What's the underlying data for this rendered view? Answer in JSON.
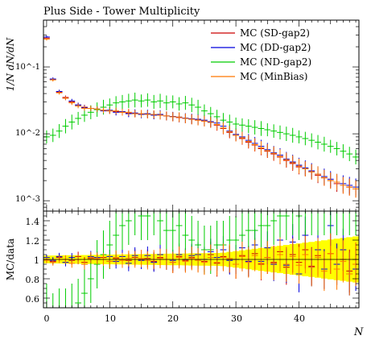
{
  "chart_data": {
    "type": "scatter",
    "title": "Plus Side - Tower Multiplicity",
    "xlabel": "N",
    "ylabel_main": "1/N dN/dN",
    "ylabel_ratio": "MC/data",
    "xlim": [
      -0.5,
      49.5
    ],
    "ylim_main": [
      0.0007,
      0.5
    ],
    "yscale_main": "log",
    "ylim_ratio": [
      0.5,
      1.5
    ],
    "x_ticks": [
      "0",
      "10",
      "20",
      "30",
      "40"
    ],
    "y_ticks_main": [
      "10^-3",
      "10^-2",
      "10^-1"
    ],
    "y_ticks_ratio": [
      "0.6",
      "0.8",
      "1",
      "1.2",
      "1.4"
    ],
    "legend_position": "top-right",
    "series": [
      {
        "name": "MC (SD-gap2)",
        "color": "#cc0000",
        "x": [
          0,
          1,
          2,
          3,
          4,
          5,
          6,
          7,
          8,
          9,
          10,
          11,
          12,
          13,
          14,
          15,
          16,
          17,
          18,
          19,
          20,
          21,
          22,
          23,
          24,
          25,
          26,
          27,
          28,
          29,
          30,
          31,
          32,
          33,
          34,
          35,
          36,
          37,
          38,
          39,
          40,
          41,
          42,
          43,
          44,
          45,
          46,
          47,
          48,
          49
        ],
        "values": [
          0.27,
          0.065,
          0.042,
          0.035,
          0.03,
          0.027,
          0.025,
          0.024,
          0.023,
          0.0225,
          0.022,
          0.0215,
          0.021,
          0.0205,
          0.02,
          0.0198,
          0.0195,
          0.0192,
          0.019,
          0.0185,
          0.018,
          0.0175,
          0.017,
          0.0165,
          0.016,
          0.0155,
          0.015,
          0.0135,
          0.012,
          0.0105,
          0.0095,
          0.0085,
          0.0075,
          0.0068,
          0.006,
          0.0055,
          0.005,
          0.0045,
          0.004,
          0.0036,
          0.0032,
          0.003,
          0.0027,
          0.0024,
          0.0022,
          0.002,
          0.0018,
          0.0017,
          0.0016,
          0.0015
        ],
        "ratio": [
          1.0,
          0.98,
          1.02,
          1.0,
          0.99,
          1.03,
          0.97,
          1.01,
          1.0,
          1.02,
          0.98,
          1.01,
          1.0,
          0.99,
          1.02,
          1.0,
          1.01,
          0.98,
          1.02,
          1.0,
          0.97,
          1.03,
          0.99,
          1.02,
          1.0,
          0.98,
          1.05,
          0.96,
          1.03,
          1.0,
          0.95,
          1.04,
          0.98,
          1.06,
          0.95,
          1.02,
          0.97,
          1.08,
          0.92,
          1.05,
          0.97,
          1.1,
          0.93,
          1.04,
          0.9,
          1.06,
          0.95,
          1.0,
          0.88,
          0.95
        ]
      },
      {
        "name": "MC (DD-gap2)",
        "color": "#0000dd",
        "x": [
          0,
          1,
          2,
          3,
          4,
          5,
          6,
          7,
          8,
          9,
          10,
          11,
          12,
          13,
          14,
          15,
          16,
          17,
          18,
          19,
          20,
          21,
          22,
          23,
          24,
          25,
          26,
          27,
          28,
          29,
          30,
          31,
          32,
          33,
          34,
          35,
          36,
          37,
          38,
          39,
          40,
          41,
          42,
          43,
          44,
          45,
          46,
          47,
          48,
          49
        ],
        "values": [
          0.28,
          0.066,
          0.043,
          0.034,
          0.031,
          0.027,
          0.0245,
          0.024,
          0.0235,
          0.022,
          0.0225,
          0.021,
          0.0215,
          0.02,
          0.0205,
          0.0195,
          0.02,
          0.019,
          0.0195,
          0.0185,
          0.0182,
          0.0178,
          0.0172,
          0.0168,
          0.0165,
          0.016,
          0.0152,
          0.0145,
          0.013,
          0.011,
          0.0098,
          0.009,
          0.008,
          0.0072,
          0.0065,
          0.0058,
          0.0052,
          0.0048,
          0.0042,
          0.0038,
          0.0034,
          0.0031,
          0.0028,
          0.0025,
          0.0023,
          0.0021,
          0.0019,
          0.0018,
          0.0017,
          0.0016
        ],
        "ratio": [
          1.02,
          0.99,
          1.03,
          0.97,
          1.02,
          1.0,
          0.95,
          1.03,
          1.02,
          1.0,
          1.03,
          0.98,
          1.03,
          0.96,
          1.04,
          0.99,
          1.04,
          0.97,
          1.05,
          1.0,
          0.99,
          1.05,
          1.0,
          1.04,
          1.05,
          1.0,
          1.08,
          1.02,
          1.1,
          0.99,
          1.0,
          1.12,
          0.98,
          1.15,
          0.98,
          1.12,
          0.95,
          1.2,
          0.94,
          1.18,
          0.85,
          1.25,
          0.92,
          1.1,
          0.9,
          1.35,
          0.95,
          1.1,
          0.85,
          0.9
        ]
      },
      {
        "name": "MC (ND-gap2)",
        "color": "#00cc00",
        "x": [
          0,
          1,
          2,
          3,
          4,
          5,
          6,
          7,
          8,
          9,
          10,
          11,
          12,
          13,
          14,
          15,
          16,
          17,
          18,
          19,
          20,
          21,
          22,
          23,
          24,
          25,
          26,
          27,
          28,
          29,
          30,
          31,
          32,
          33,
          34,
          35,
          36,
          37,
          38,
          39,
          40,
          41,
          42,
          43,
          44,
          45,
          46,
          47,
          48,
          49
        ],
        "values": [
          0.009,
          0.0095,
          0.011,
          0.013,
          0.015,
          0.017,
          0.019,
          0.021,
          0.023,
          0.025,
          0.027,
          0.029,
          0.03,
          0.031,
          0.032,
          0.031,
          0.032,
          0.03,
          0.031,
          0.029,
          0.03,
          0.028,
          0.029,
          0.027,
          0.025,
          0.022,
          0.02,
          0.018,
          0.016,
          0.015,
          0.014,
          0.0135,
          0.013,
          0.0125,
          0.012,
          0.0115,
          0.011,
          0.0105,
          0.01,
          0.0095,
          0.009,
          0.0085,
          0.008,
          0.0075,
          0.007,
          0.0065,
          0.006,
          0.0055,
          0.005,
          0.0045
        ],
        "ratio": [
          0.5,
          0.4,
          0.45,
          0.45,
          0.5,
          0.55,
          0.65,
          0.8,
          0.95,
          1.05,
          1.15,
          1.25,
          1.35,
          1.4,
          1.5,
          1.45,
          1.45,
          1.5,
          1.4,
          1.3,
          1.3,
          1.35,
          1.25,
          1.2,
          1.15,
          1.1,
          1.1,
          1.15,
          1.15,
          1.2,
          1.2,
          1.25,
          1.3,
          1.3,
          1.35,
          1.35,
          1.4,
          1.45,
          1.45,
          1.5,
          1.45,
          1.5,
          1.5,
          1.5,
          1.5,
          1.5,
          1.5,
          1.5,
          1.5,
          1.5
        ]
      },
      {
        "name": "MC (MinBias)",
        "color": "#ff7700",
        "x": [
          0,
          1,
          2,
          3,
          4,
          5,
          6,
          7,
          8,
          9,
          10,
          11,
          12,
          13,
          14,
          15,
          16,
          17,
          18,
          19,
          20,
          21,
          22,
          23,
          24,
          25,
          26,
          27,
          28,
          29,
          30,
          31,
          32,
          33,
          34,
          35,
          36,
          37,
          38,
          39,
          40,
          41,
          42,
          43,
          44,
          45,
          46,
          47,
          48,
          49
        ],
        "values": [
          0.26,
          0.064,
          0.041,
          0.034,
          0.029,
          0.026,
          0.024,
          0.024,
          0.0235,
          0.0225,
          0.022,
          0.022,
          0.021,
          0.021,
          0.02,
          0.02,
          0.0195,
          0.0195,
          0.019,
          0.0185,
          0.018,
          0.0178,
          0.017,
          0.0165,
          0.016,
          0.0155,
          0.0148,
          0.0138,
          0.0122,
          0.0108,
          0.0095,
          0.0087,
          0.0077,
          0.0069,
          0.0062,
          0.0056,
          0.0051,
          0.0046,
          0.0041,
          0.0037,
          0.0033,
          0.003,
          0.0027,
          0.0025,
          0.0022,
          0.002,
          0.0019,
          0.0017,
          0.0016,
          0.0015
        ],
        "ratio": [
          0.99,
          0.97,
          1.0,
          1.0,
          0.96,
          1.0,
          0.95,
          1.02,
          1.01,
          1.0,
          0.98,
          1.02,
          0.99,
          1.01,
          1.0,
          1.01,
          0.99,
          1.0,
          1.01,
          1.0,
          0.97,
          1.02,
          0.98,
          1.01,
          0.99,
          0.97,
          1.02,
          0.97,
          1.02,
          1.01,
          0.95,
          1.03,
          0.97,
          1.04,
          0.96,
          1.02,
          0.96,
          1.05,
          0.95,
          1.03,
          0.94,
          1.05,
          0.92,
          1.02,
          0.88,
          1.06,
          0.9,
          0.98,
          0.85,
          0.95
        ]
      }
    ]
  }
}
